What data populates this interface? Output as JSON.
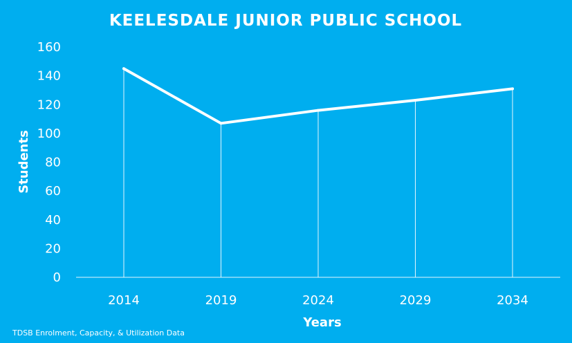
{
  "colors": {
    "background": "#00aeef",
    "line": "#ffffff",
    "dropline": "#e6f6fd",
    "axis": "#e6f6fd"
  },
  "source_note": "TDSB Enrolment, Capacity, & Utilization Data",
  "chart_data": {
    "type": "line",
    "title": "KEELESDALE JUNIOR PUBLIC SCHOOL",
    "xlabel": "Years",
    "ylabel": "Students",
    "categories": [
      "2014",
      "2019",
      "2024",
      "2029",
      "2034"
    ],
    "series": [
      {
        "values": [
          145,
          107,
          116,
          123,
          131
        ]
      }
    ],
    "ylim": [
      0,
      160
    ],
    "yticks": [
      "0",
      "20",
      "40",
      "60",
      "80",
      "100",
      "120",
      "140",
      "160"
    ],
    "grid": false,
    "drop_lines": true,
    "legend": "none"
  }
}
